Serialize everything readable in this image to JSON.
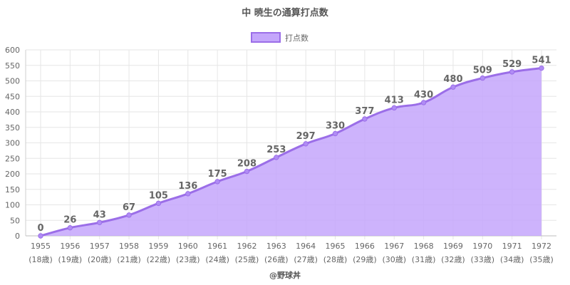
{
  "chart_data": {
    "type": "area",
    "title": "中 暁生の通算打点数",
    "credit": "@野球丼",
    "legend": {
      "label": "打点数",
      "position": "top"
    },
    "x": [
      "1955",
      "1956",
      "1957",
      "1958",
      "1959",
      "1960",
      "1961",
      "1962",
      "1963",
      "1964",
      "1965",
      "1966",
      "1967",
      "1968",
      "1969",
      "1970",
      "1971",
      "1972"
    ],
    "x_sub": [
      "(18歳)",
      "(19歳)",
      "(20歳)",
      "(21歳)",
      "(22歳)",
      "(23歳)",
      "(24歳)",
      "(25歳)",
      "(26歳)",
      "(27歳)",
      "(28歳)",
      "(29歳)",
      "(30歳)",
      "(31歳)",
      "(32歳)",
      "(33歳)",
      "(34歳)",
      "(35歳)"
    ],
    "series": [
      {
        "name": "打点数",
        "values": [
          0,
          26,
          43,
          67,
          105,
          136,
          175,
          208,
          253,
          297,
          330,
          377,
          413,
          430,
          480,
          509,
          529,
          541
        ]
      }
    ],
    "ylim": [
      0,
      600
    ],
    "yticks": [
      0,
      50,
      100,
      150,
      200,
      250,
      300,
      350,
      400,
      450,
      500,
      550,
      600
    ],
    "grid": true,
    "colors": {
      "line": "#9b6ee8",
      "fill": "#c4a6fb",
      "point": "#b08cf5"
    }
  }
}
